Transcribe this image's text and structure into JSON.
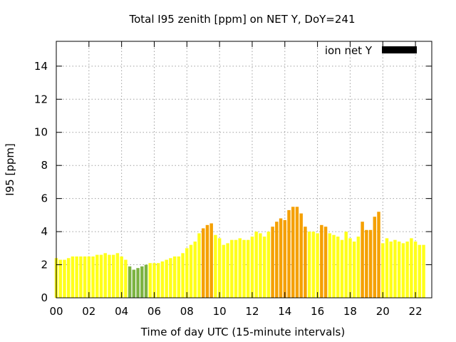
{
  "chart_data": {
    "type": "bar",
    "title": "Total I95 zenith [ppm] on NET Y, DoY=241",
    "xlabel": "Time of day UTC (15-minute intervals)",
    "ylabel": "I95 [ppm]",
    "xlim": [
      0,
      23
    ],
    "ylim": [
      0,
      15.5
    ],
    "x_ticks": [
      "00",
      "02",
      "04",
      "06",
      "08",
      "10",
      "12",
      "14",
      "16",
      "18",
      "20",
      "22"
    ],
    "y_ticks": [
      "0",
      "2",
      "4",
      "6",
      "8",
      "10",
      "12",
      "14"
    ],
    "grid": true,
    "legend": {
      "position": "top-right",
      "entries": [
        {
          "name": "ion net Y",
          "color": "#000000"
        }
      ]
    },
    "interval_hours": 0.25,
    "values": [
      2.4,
      2.3,
      2.3,
      2.4,
      2.5,
      2.5,
      2.5,
      2.5,
      2.5,
      2.5,
      2.6,
      2.6,
      2.7,
      2.6,
      2.6,
      2.7,
      2.5,
      2.3,
      1.9,
      1.7,
      1.8,
      1.9,
      2.0,
      2.1,
      2.1,
      2.1,
      2.2,
      2.3,
      2.4,
      2.5,
      2.5,
      2.7,
      3.0,
      3.2,
      3.4,
      3.9,
      4.2,
      4.4,
      4.5,
      3.8,
      3.6,
      3.2,
      3.3,
      3.5,
      3.5,
      3.6,
      3.5,
      3.5,
      3.7,
      4.0,
      3.9,
      3.7,
      4.0,
      4.3,
      4.6,
      4.8,
      4.7,
      5.3,
      5.5,
      5.5,
      5.1,
      4.3,
      4.0,
      4.0,
      3.9,
      4.4,
      4.3,
      3.9,
      3.8,
      3.7,
      3.5,
      4.0,
      3.6,
      3.4,
      3.7,
      4.6,
      4.1,
      4.1,
      4.9,
      5.2,
      3.3,
      3.6,
      3.4,
      3.5,
      3.4,
      3.3,
      3.4,
      3.6,
      3.4,
      3.2,
      3.2
    ],
    "colors": {
      "low": "#7cb342",
      "normal": "#ffff1a",
      "elevated": "#f5a000",
      "grid": "#a0a0a0"
    },
    "thresholds": {
      "low_below": 2.05,
      "elevated_from": 4.1
    }
  }
}
